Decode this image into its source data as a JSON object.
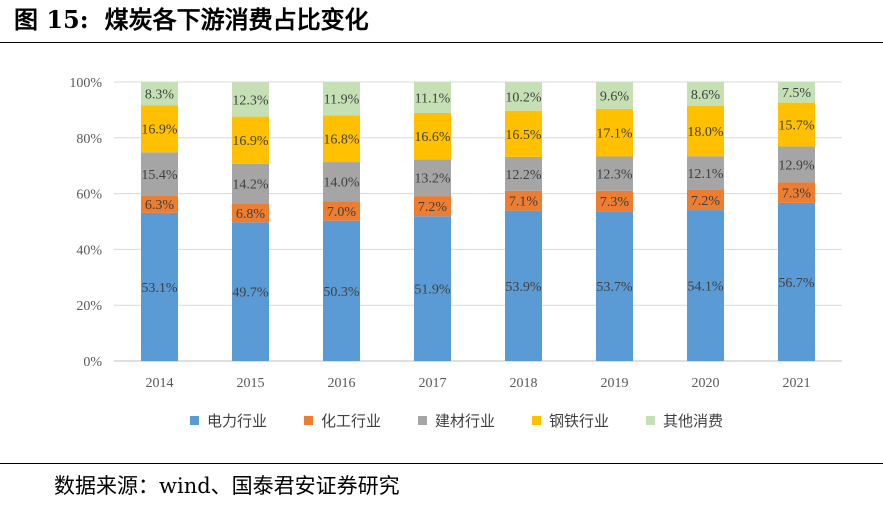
{
  "figure": {
    "label": "图 15:",
    "title": "煤炭各下游消费占比变化"
  },
  "source_text": "数据来源：wind、国泰君安证券研究",
  "chart_data": {
    "type": "bar",
    "stacked": true,
    "categories": [
      "2014",
      "2015",
      "2016",
      "2017",
      "2018",
      "2019",
      "2020",
      "2021"
    ],
    "series": [
      {
        "name": "电力行业",
        "color": "#5b9bd5",
        "values": [
          53.1,
          49.7,
          50.3,
          51.9,
          53.9,
          53.7,
          54.1,
          56.7
        ],
        "labels": [
          "53.1%",
          "49.7%",
          "50.3%",
          "51.9%",
          "53.9%",
          "53.7%",
          "54.1%",
          "56.7%"
        ]
      },
      {
        "name": "化工行业",
        "color": "#ed7d31",
        "values": [
          6.3,
          6.8,
          7.0,
          7.2,
          7.1,
          7.3,
          7.2,
          7.3
        ],
        "labels": [
          "6.3%",
          "6.8%",
          "7.0%",
          "7.2%",
          "7.1%",
          "7.3%",
          "7.2%",
          "7.3%"
        ]
      },
      {
        "name": "建材行业",
        "color": "#a5a5a5",
        "values": [
          15.4,
          14.2,
          14.0,
          13.2,
          12.2,
          12.3,
          12.1,
          12.9
        ],
        "labels": [
          "15.4%",
          "14.2%",
          "14.0%",
          "13.2%",
          "12.2%",
          "12.3%",
          "12.1%",
          "12.9%"
        ]
      },
      {
        "name": "钢铁行业",
        "color": "#ffc000",
        "values": [
          16.9,
          16.9,
          16.8,
          16.6,
          16.5,
          17.1,
          18.0,
          15.7
        ],
        "labels": [
          "16.9%",
          "16.9%",
          "16.8%",
          "16.6%",
          "16.5%",
          "17.1%",
          "18.0%",
          "15.7%"
        ]
      },
      {
        "name": "其他消费",
        "color": "#c5e0b4",
        "values": [
          8.3,
          12.3,
          11.9,
          11.1,
          10.2,
          9.6,
          8.6,
          7.5
        ],
        "labels": [
          "8.3%",
          "12.3%",
          "11.9%",
          "11.1%",
          "10.2%",
          "9.6%",
          "8.6%",
          "7.5%"
        ]
      }
    ],
    "y_ticks": [
      "0%",
      "20%",
      "40%",
      "60%",
      "80%",
      "100%"
    ],
    "ylim": [
      0,
      100
    ],
    "grid": true,
    "legend_position": "bottom"
  }
}
